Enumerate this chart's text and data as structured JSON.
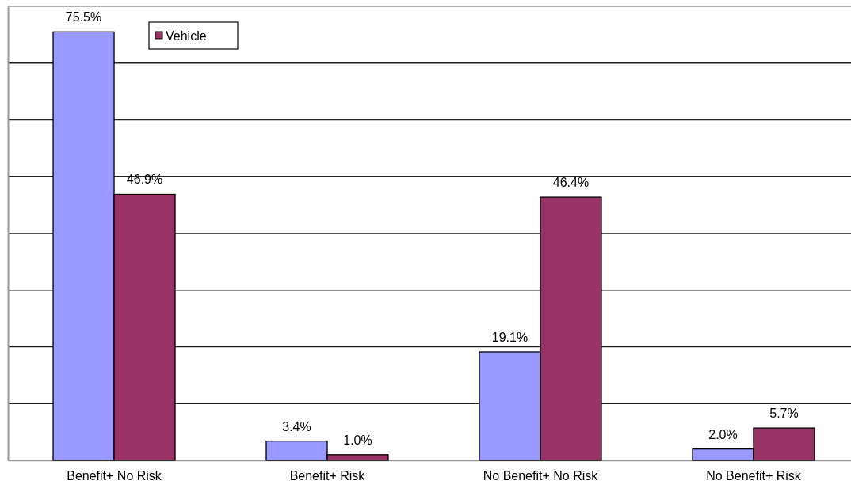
{
  "chart_data": {
    "type": "bar",
    "categories": [
      "Benefit+ No Risk",
      "Benefit+ Risk",
      "No Benefit+ No Risk",
      "No Benefit+ Risk"
    ],
    "series": [
      {
        "color": "#9999ff",
        "values": [
          75.5,
          3.4,
          19.1,
          2.0
        ],
        "value_labels": [
          "75.5%",
          "3.4%",
          "19.1%",
          "2.0%"
        ]
      },
      {
        "name": "Vehicle",
        "color": "#993366",
        "values": [
          46.9,
          1.0,
          46.4,
          5.7
        ],
        "value_labels": [
          "46.9%",
          "1.0%",
          "46.4%",
          "5.7%"
        ]
      }
    ],
    "ylim": [
      0,
      80
    ],
    "yticks": [
      {
        "value": 0,
        "label": null
      },
      {
        "value": 10,
        "label": null
      },
      {
        "value": 20,
        "label": null
      },
      {
        "value": 30,
        "label": null
      },
      {
        "value": 40,
        "label": null
      },
      {
        "value": 50,
        "label": null
      },
      {
        "value": 60,
        "label": null
      },
      {
        "value": 70,
        "label": null
      },
      {
        "value": 80,
        "label": null
      }
    ],
    "tick_labels": "x",
    "grid": "y",
    "legend": "top left"
  }
}
